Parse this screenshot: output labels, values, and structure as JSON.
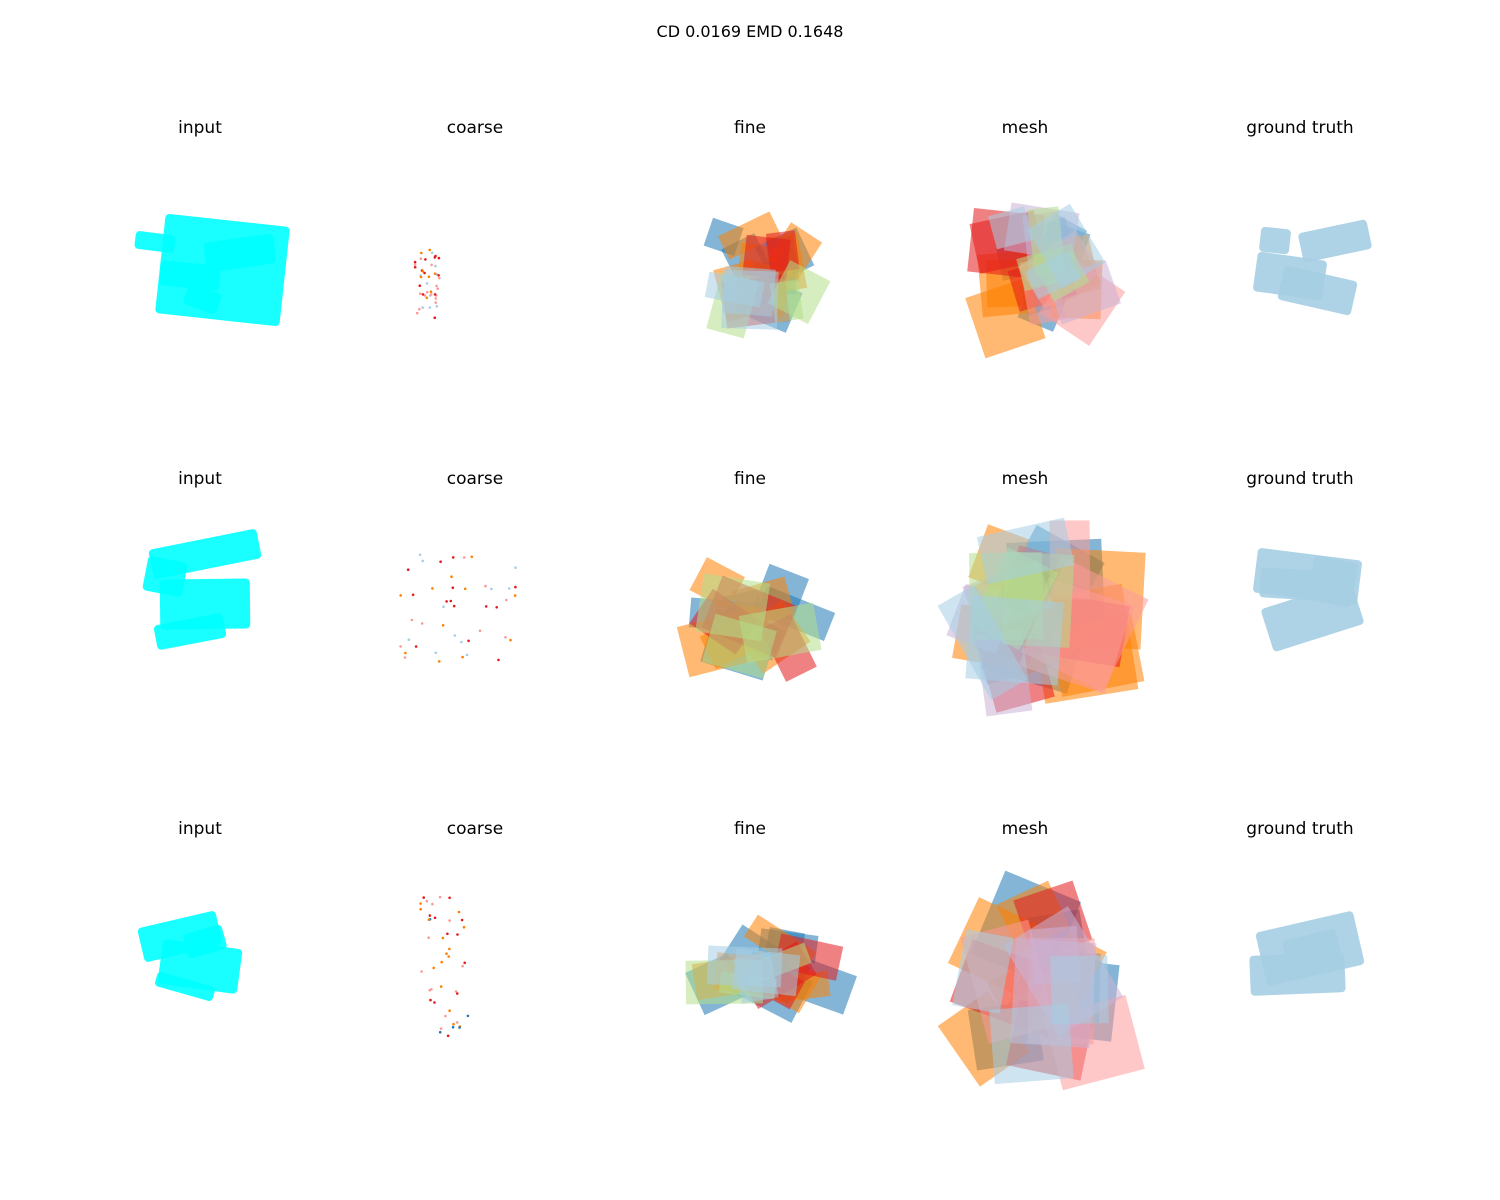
{
  "figure": {
    "suptitle": "CD 0.0169  EMD 0.1648"
  },
  "colors": {
    "input": "#00ffff",
    "ground_truth": "#a6cee3",
    "blue": "#1f78b4",
    "light_blue": "#a6cee3",
    "orange": "#ff7f00",
    "red": "#e31a1c",
    "pink": "#fb9a99",
    "green": "#b2df8a",
    "purple": "#cab2d6"
  },
  "chart_data": {
    "type": "scatter",
    "description_3d": "3D point-cloud panels, axes hidden",
    "column_titles": [
      "input",
      "coarse",
      "fine",
      "mesh",
      "ground truth"
    ],
    "rows": [
      {
        "panels": [
          {
            "title": "input",
            "style": "dense",
            "color": "input"
          },
          {
            "title": "coarse",
            "style": "sparse",
            "colors": [
              "orange",
              "red",
              "pink",
              "light_blue"
            ]
          },
          {
            "title": "fine",
            "style": "patches",
            "colors": [
              "blue",
              "orange",
              "red",
              "green",
              "light_blue"
            ]
          },
          {
            "title": "mesh",
            "style": "patches",
            "colors": [
              "blue",
              "orange",
              "red",
              "pink",
              "purple",
              "green",
              "light_blue"
            ]
          },
          {
            "title": "ground truth",
            "style": "dense",
            "color": "ground_truth"
          }
        ]
      },
      {
        "panels": [
          {
            "title": "input",
            "style": "dense",
            "color": "input"
          },
          {
            "title": "coarse",
            "style": "sparse",
            "colors": [
              "orange",
              "red",
              "pink",
              "light_blue"
            ]
          },
          {
            "title": "fine",
            "style": "patches",
            "colors": [
              "blue",
              "orange",
              "red",
              "green"
            ]
          },
          {
            "title": "mesh",
            "style": "patches",
            "colors": [
              "blue",
              "orange",
              "red",
              "pink",
              "purple",
              "green",
              "light_blue"
            ]
          },
          {
            "title": "ground truth",
            "style": "dense",
            "color": "ground_truth"
          }
        ]
      },
      {
        "panels": [
          {
            "title": "input",
            "style": "dense",
            "color": "input"
          },
          {
            "title": "coarse",
            "style": "sparse",
            "colors": [
              "orange",
              "red",
              "pink",
              "blue"
            ]
          },
          {
            "title": "fine",
            "style": "patches",
            "colors": [
              "blue",
              "orange",
              "red",
              "green",
              "light_blue"
            ]
          },
          {
            "title": "mesh",
            "style": "patches",
            "colors": [
              "blue",
              "orange",
              "red",
              "pink",
              "purple",
              "light_blue"
            ]
          },
          {
            "title": "ground truth",
            "style": "dense",
            "color": "ground_truth"
          }
        ]
      }
    ]
  }
}
